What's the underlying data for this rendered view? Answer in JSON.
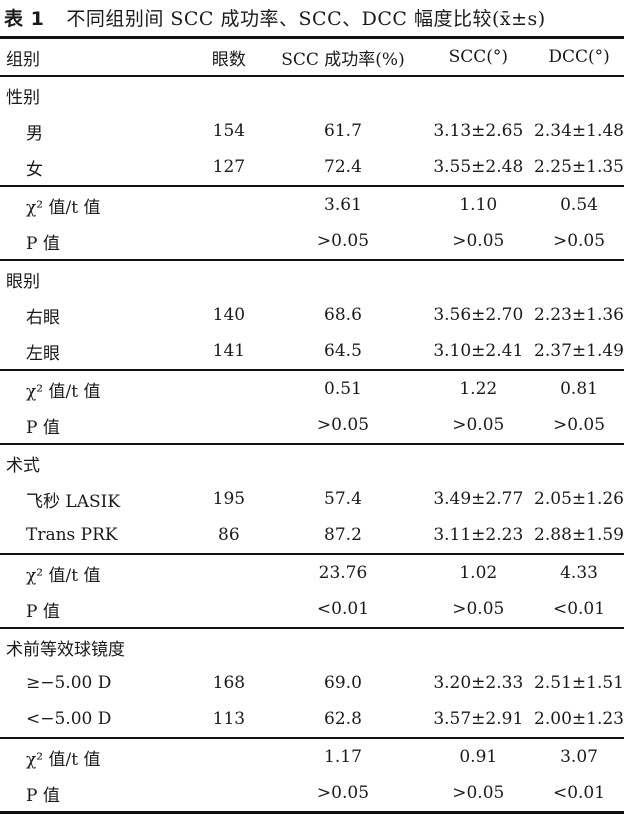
{
  "title": {
    "label": "表 1",
    "text": "不同组别间 SCC 成功率、SCC、DCC 幅度比较",
    "stat": "(x̄±s)"
  },
  "columns": [
    "组别",
    "眼数",
    "SCC 成功率(%)",
    "SCC(°)",
    "DCC(°)"
  ],
  "groups": [
    {
      "name": "性别",
      "rows": [
        {
          "label": "男",
          "n": "154",
          "rate": "61.7",
          "scc": "3.13±2.65",
          "dcc": "2.34±1.48"
        },
        {
          "label": "女",
          "n": "127",
          "rate": "72.4",
          "scc": "3.55±2.48",
          "dcc": "2.25±1.35"
        }
      ],
      "test": {
        "label": "χ² 值/t 值",
        "rate": "3.61",
        "scc": "1.10",
        "dcc": "0.54"
      },
      "p": {
        "label": "P 值",
        "rate": ">0.05",
        "scc": ">0.05",
        "dcc": ">0.05"
      }
    },
    {
      "name": "眼别",
      "rows": [
        {
          "label": "右眼",
          "n": "140",
          "rate": "68.6",
          "scc": "3.56±2.70",
          "dcc": "2.23±1.36"
        },
        {
          "label": "左眼",
          "n": "141",
          "rate": "64.5",
          "scc": "3.10±2.41",
          "dcc": "2.37±1.49"
        }
      ],
      "test": {
        "label": "χ² 值/t 值",
        "rate": "0.51",
        "scc": "1.22",
        "dcc": "0.81"
      },
      "p": {
        "label": "P 值",
        "rate": ">0.05",
        "scc": ">0.05",
        "dcc": ">0.05"
      }
    },
    {
      "name": "术式",
      "rows": [
        {
          "label": "飞秒 LASIK",
          "n": "195",
          "rate": "57.4",
          "scc": "3.49±2.77",
          "dcc": "2.05±1.26"
        },
        {
          "label": "Trans PRK",
          "n": "86",
          "rate": "87.2",
          "scc": "3.11±2.23",
          "dcc": "2.88±1.59"
        }
      ],
      "test": {
        "label": "χ² 值/t 值",
        "rate": "23.76",
        "scc": "1.02",
        "dcc": "4.33"
      },
      "p": {
        "label": "P 值",
        "rate": "<0.01",
        "scc": ">0.05",
        "dcc": "<0.01"
      }
    },
    {
      "name": "术前等效球镜度",
      "rows": [
        {
          "label": "≥−5.00 D",
          "n": "168",
          "rate": "69.0",
          "scc": "3.20±2.33",
          "dcc": "2.51±1.51"
        },
        {
          "label": "<−5.00 D",
          "n": "113",
          "rate": "62.8",
          "scc": "3.57±2.91",
          "dcc": "2.00±1.23"
        }
      ],
      "test": {
        "label": "χ² 值/t 值",
        "rate": "1.17",
        "scc": "0.91",
        "dcc": "3.07"
      },
      "p": {
        "label": "P 值",
        "rate": ">0.05",
        "scc": ">0.05",
        "dcc": "<0.01"
      }
    }
  ]
}
